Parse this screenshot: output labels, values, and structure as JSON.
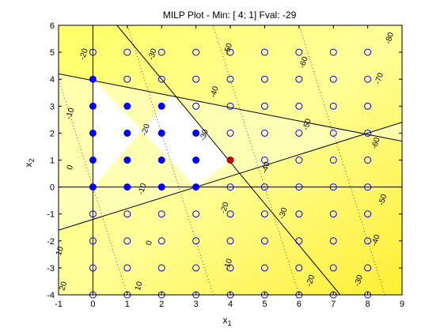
{
  "chart_data": {
    "type": "scatter",
    "title": "MILP Plot - Min: [ 4;  1]  Fval: -29",
    "xlabel": "x",
    "xlabel_sub": "1",
    "ylabel": "x",
    "ylabel_sub": "2",
    "xlim": [
      -1,
      9
    ],
    "ylim": [
      -4,
      6
    ],
    "xticks": [
      "-1",
      "0",
      "1",
      "2",
      "3",
      "4",
      "5",
      "6",
      "7",
      "8",
      "9"
    ],
    "yticks": [
      "-4",
      "-3",
      "-2",
      "-1",
      "0",
      "1",
      "2",
      "3",
      "4",
      "5",
      "6"
    ],
    "grid": false,
    "colors": {
      "background": "#ffff00",
      "feasible_region": "#ffffff",
      "constraint_lines": "#000000",
      "integer_points": "#0000ff",
      "feasible_points": "#0000ff",
      "optimum_point": "#cc0000",
      "contours": "#555555"
    },
    "constraints": [
      {
        "x": [
          -1,
          9
        ],
        "y": [
          4.2,
          1.7
        ]
      },
      {
        "x": [
          0.7,
          7.2
        ],
        "y": [
          6,
          -4
        ]
      },
      {
        "x": [
          -1,
          9
        ],
        "y": [
          -1.6,
          2.4
        ]
      },
      {
        "x": [
          -1,
          9
        ],
        "y": [
          0,
          0
        ]
      },
      {
        "x": [
          0,
          0
        ],
        "y": [
          -4,
          6
        ]
      }
    ],
    "feasible_region": {
      "x": [
        0,
        0,
        3.0,
        4.0,
        2.3
      ],
      "y": [
        0,
        4.0,
        0,
        1.0,
        3.4
      ]
    },
    "integer_grid": {
      "x_range": [
        0,
        8
      ],
      "y_range": [
        -4,
        5
      ]
    },
    "feasible_points": {
      "x": [
        0,
        0,
        0,
        0,
        0,
        1,
        1,
        1,
        1,
        2,
        2,
        2,
        2,
        3,
        3,
        3
      ],
      "y": [
        0,
        1,
        2,
        3,
        4,
        0,
        1,
        2,
        3,
        0,
        1,
        2,
        3,
        0,
        1,
        2
      ]
    },
    "optimum": {
      "x": 4,
      "y": 1,
      "fval": -29
    },
    "contour_levels": [
      "-80",
      "-70",
      "-60",
      "-50",
      "-40",
      "-30",
      "-20",
      "-10",
      "0",
      "10",
      "20"
    ],
    "contour_labels": [
      {
        "text": "-80",
        "x": 8.7,
        "y": 5.5
      },
      {
        "text": "-70",
        "x": 8.4,
        "y": 4.0
      },
      {
        "text": "-60",
        "x": 6.2,
        "y": 4.6
      },
      {
        "text": "-50",
        "x": 4.0,
        "y": 5.1
      },
      {
        "text": "-40",
        "x": 3.6,
        "y": 3.5
      },
      {
        "text": "-30",
        "x": 1.8,
        "y": 4.9
      },
      {
        "text": "-20",
        "x": -0.2,
        "y": 4.9
      },
      {
        "text": "-50",
        "x": 6.3,
        "y": 2.3
      },
      {
        "text": "-60",
        "x": 8.3,
        "y": 1.6
      },
      {
        "text": "-10",
        "x": -0.6,
        "y": 2.7
      },
      {
        "text": "-20",
        "x": 1.6,
        "y": 2.1
      },
      {
        "text": "-30",
        "x": 3.3,
        "y": 1.9
      },
      {
        "text": "-40",
        "x": 5.1,
        "y": 0.7
      },
      {
        "text": "-50",
        "x": 8.5,
        "y": -0.5
      },
      {
        "text": "0",
        "x": -0.6,
        "y": 0.7
      },
      {
        "text": "-10",
        "x": 1.5,
        "y": -0.1
      },
      {
        "text": "-20",
        "x": 3.9,
        "y": -0.8
      },
      {
        "text": "-30",
        "x": 5.6,
        "y": -1.0
      },
      {
        "text": "-40",
        "x": 8.3,
        "y": -2.0
      },
      {
        "text": "10",
        "x": -0.9,
        "y": -2.4
      },
      {
        "text": "0",
        "x": 1.7,
        "y": -2.1
      },
      {
        "text": "-10",
        "x": 4.0,
        "y": -2.9
      },
      {
        "text": "-20",
        "x": 6.4,
        "y": -3.5
      },
      {
        "text": "-30",
        "x": 7.8,
        "y": -3.5
      },
      {
        "text": "20",
        "x": -0.8,
        "y": -3.7
      },
      {
        "text": "10",
        "x": 1.4,
        "y": -3.7
      }
    ]
  }
}
